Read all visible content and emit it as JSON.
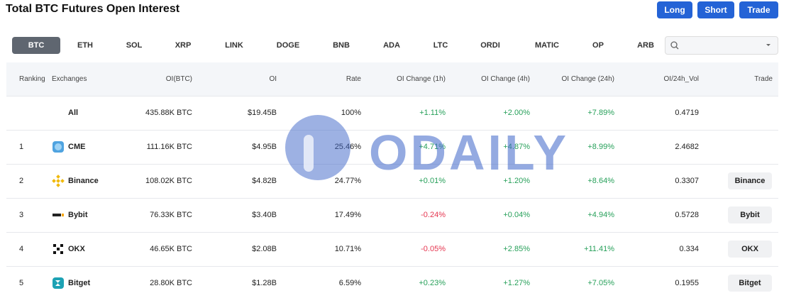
{
  "header": {
    "title": "Total BTC Futures Open Interest",
    "buttons": [
      "Long",
      "Short",
      "Trade"
    ]
  },
  "tabs": [
    "BTC",
    "ETH",
    "SOL",
    "XRP",
    "LINK",
    "DOGE",
    "BNB",
    "ADA",
    "LTC",
    "ORDI",
    "MATIC",
    "OP",
    "ARB"
  ],
  "watermark": "ODAILY",
  "table": {
    "columns": [
      "Ranking",
      "Exchanges",
      "OI(BTC)",
      "OI",
      "Rate",
      "OI Change (1h)",
      "OI Change (4h)",
      "OI Change (24h)",
      "OI/24h_Vol",
      "Trade"
    ],
    "rows": [
      {
        "exchange": "All",
        "oi_btc": "435.88K BTC",
        "oi": "$19.45B",
        "rate": "100%",
        "ch1h": "+1.11%",
        "ch4h": "+2.00%",
        "ch24h": "+7.89%",
        "vol": "0.4719"
      },
      {
        "rank": "1",
        "exchange": "CME",
        "oi_btc": "111.16K BTC",
        "oi": "$4.95B",
        "rate": "25.46%",
        "ch1h": "+4.71%",
        "ch4h": "+4.87%",
        "ch24h": "+8.99%",
        "vol": "2.4682"
      },
      {
        "rank": "2",
        "exchange": "Binance",
        "oi_btc": "108.02K BTC",
        "oi": "$4.82B",
        "rate": "24.77%",
        "ch1h": "+0.01%",
        "ch4h": "+1.20%",
        "ch24h": "+8.64%",
        "vol": "0.3307",
        "trade": "Binance"
      },
      {
        "rank": "3",
        "exchange": "Bybit",
        "oi_btc": "76.33K BTC",
        "oi": "$3.40B",
        "rate": "17.49%",
        "ch1h": "-0.24%",
        "ch4h": "+0.04%",
        "ch24h": "+4.94%",
        "vol": "0.5728",
        "trade": "Bybit"
      },
      {
        "rank": "4",
        "exchange": "OKX",
        "oi_btc": "46.65K BTC",
        "oi": "$2.08B",
        "rate": "10.71%",
        "ch1h": "-0.05%",
        "ch4h": "+2.85%",
        "ch24h": "+11.41%",
        "vol": "0.334",
        "trade": "OKX"
      },
      {
        "rank": "5",
        "exchange": "Bitget",
        "oi_btc": "28.80K BTC",
        "oi": "$1.28B",
        "rate": "6.59%",
        "ch1h": "+0.23%",
        "ch4h": "+1.27%",
        "ch24h": "+7.05%",
        "vol": "0.1955",
        "trade": "Bitget"
      }
    ]
  }
}
